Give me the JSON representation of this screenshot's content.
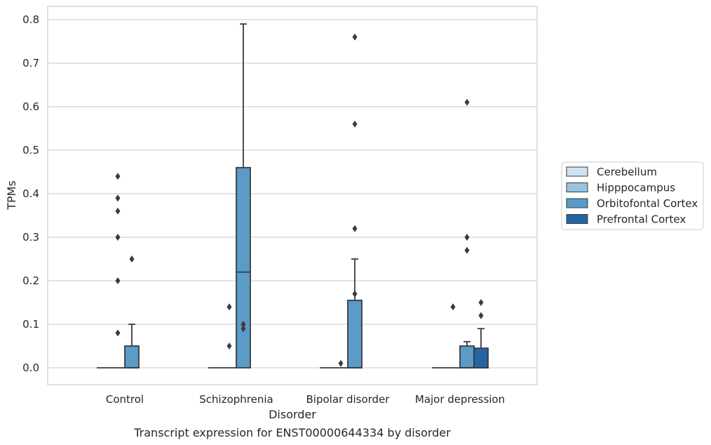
{
  "chart_data": {
    "type": "box",
    "xlabel": "Disorder",
    "ylabel": "TPMs",
    "caption": "Transcript expression for ENST00000644334 by disorder",
    "ylim": [
      -0.04,
      0.83
    ],
    "yticks": [
      0.0,
      0.1,
      0.2,
      0.3,
      0.4,
      0.5,
      0.6,
      0.7,
      0.8
    ],
    "ytick_labels": [
      "0.0",
      "0.1",
      "0.2",
      "0.3",
      "0.4",
      "0.5",
      "0.6",
      "0.7",
      "0.8"
    ],
    "categories": [
      "Control",
      "Schizophrenia",
      "Bipolar disorder",
      "Major depression"
    ],
    "grid": "horizontal",
    "legend_position": "right-outside",
    "series": [
      {
        "name": "Cerebellum",
        "color": "#d0e1f2",
        "boxes": [
          {
            "q1": 0,
            "median": 0,
            "q3": 0,
            "whislo": 0,
            "whishi": 0,
            "fliers": []
          },
          {
            "q1": 0,
            "median": 0,
            "q3": 0,
            "whislo": 0,
            "whishi": 0,
            "fliers": []
          },
          {
            "q1": 0,
            "median": 0,
            "q3": 0,
            "whislo": 0,
            "whishi": 0,
            "fliers": []
          },
          {
            "q1": 0,
            "median": 0,
            "q3": 0,
            "whislo": 0,
            "whishi": 0,
            "fliers": []
          }
        ]
      },
      {
        "name": "Hipppocampus",
        "color": "#94c4df",
        "boxes": [
          {
            "q1": 0,
            "median": 0,
            "q3": 0,
            "whislo": 0,
            "whishi": 0,
            "fliers": [
              0.08,
              0.2,
              0.3,
              0.36,
              0.39,
              0.44
            ]
          },
          {
            "q1": 0,
            "median": 0,
            "q3": 0,
            "whislo": 0,
            "whishi": 0,
            "fliers": [
              0.05,
              0.14
            ]
          },
          {
            "q1": 0,
            "median": 0,
            "q3": 0,
            "whislo": 0,
            "whishi": 0,
            "fliers": [
              0.01
            ]
          },
          {
            "q1": 0,
            "median": 0,
            "q3": 0,
            "whislo": 0,
            "whishi": 0,
            "fliers": [
              0.14
            ]
          }
        ]
      },
      {
        "name": "Orbitofontal Cortex",
        "color": "#5a9bc8",
        "boxes": [
          {
            "q1": 0,
            "median": 0,
            "q3": 0.05,
            "whislo": 0,
            "whishi": 0.1,
            "fliers": [
              0.25
            ]
          },
          {
            "q1": 0,
            "median": 0.22,
            "q3": 0.46,
            "whislo": 0,
            "whishi": 0.79,
            "fliers": [
              0.09,
              0.1
            ]
          },
          {
            "q1": 0,
            "median": 0,
            "q3": 0.155,
            "whislo": 0,
            "whishi": 0.25,
            "fliers": [
              0.17,
              0.32,
              0.56,
              0.76
            ]
          },
          {
            "q1": 0,
            "median": 0,
            "q3": 0.05,
            "whislo": 0,
            "whishi": 0.06,
            "fliers": [
              0.27,
              0.3,
              0.61
            ]
          }
        ]
      },
      {
        "name": "Prefrontal Cortex",
        "color": "#2465a6",
        "boxes": [
          null,
          null,
          null,
          {
            "q1": 0,
            "median": 0,
            "q3": 0.045,
            "whislo": 0,
            "whishi": 0.09,
            "fliers": [
              0.12,
              0.15
            ]
          }
        ]
      }
    ]
  }
}
